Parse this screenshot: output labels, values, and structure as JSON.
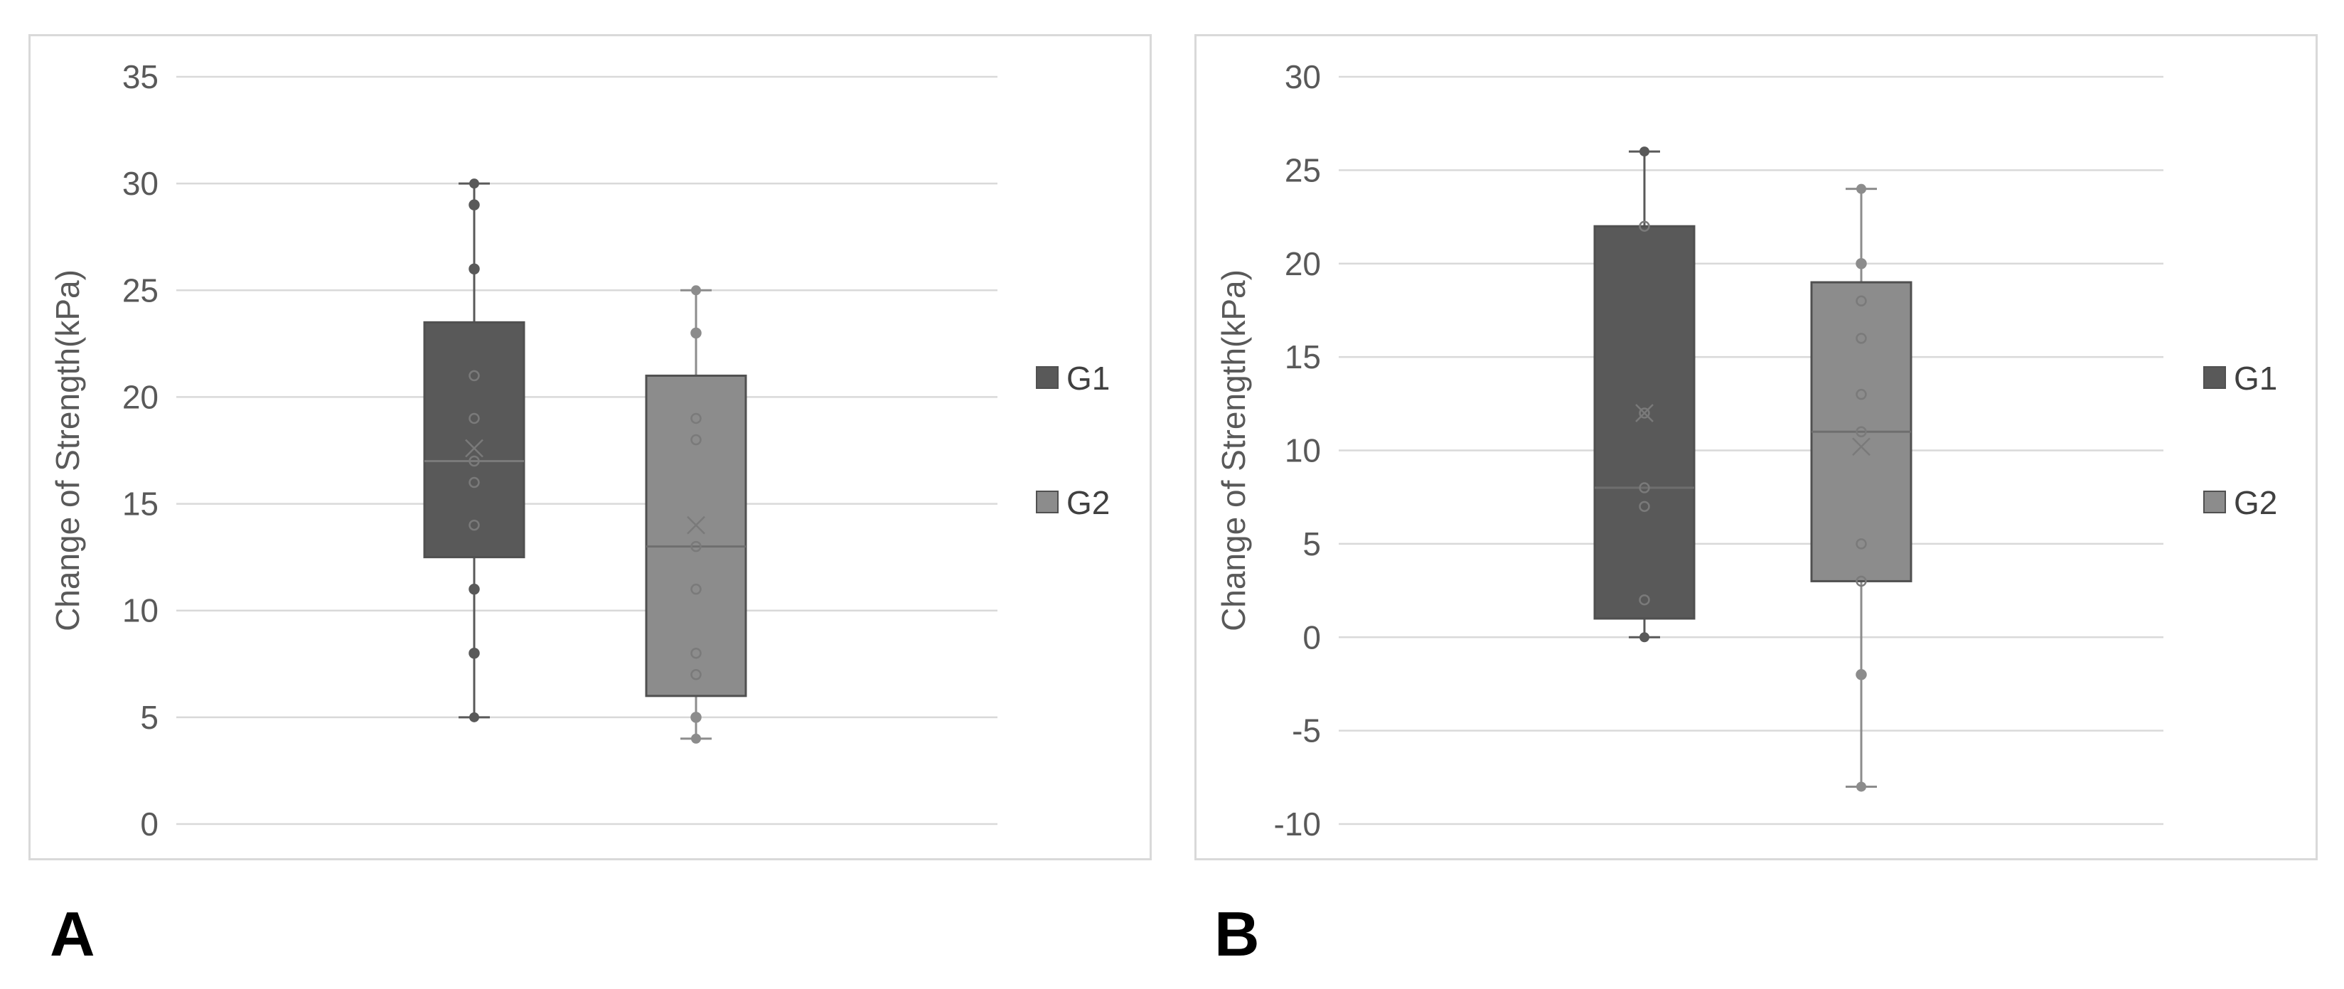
{
  "chart_data": [
    {
      "type": "box",
      "panel_label": "A",
      "ylabel": "Change of Strength(kPa)",
      "ylim": [
        0,
        35
      ],
      "yticks": [
        "0",
        "5",
        "10",
        "15",
        "20",
        "25",
        "30",
        "35"
      ],
      "ytick_values": [
        0,
        5,
        10,
        15,
        20,
        25,
        30,
        35
      ],
      "grid": true,
      "legend": [
        "G1",
        "G2"
      ],
      "legend_position": "right",
      "series": [
        {
          "name": "G1",
          "color": "#595959",
          "q1": 12.5,
          "median": 17,
          "q3": 23.5,
          "mean": 17.6,
          "whisker_low": 5,
          "whisker_high": 30,
          "points": [
            29,
            26,
            21,
            19,
            17,
            16,
            14,
            11,
            8
          ]
        },
        {
          "name": "G2",
          "color": "#8c8c8c",
          "q1": 6,
          "median": 13,
          "q3": 21,
          "mean": 14,
          "whisker_low": 4,
          "whisker_high": 25,
          "points": [
            23,
            19,
            18,
            13,
            11,
            8,
            7,
            5
          ]
        }
      ]
    },
    {
      "type": "box",
      "panel_label": "B",
      "ylabel": "Change of Strength(kPa)",
      "ylim": [
        -10,
        30
      ],
      "yticks": [
        "-10",
        "-5",
        "0",
        "5",
        "10",
        "15",
        "20",
        "25",
        "30"
      ],
      "ytick_values": [
        -10,
        -5,
        0,
        5,
        10,
        15,
        20,
        25,
        30
      ],
      "grid": true,
      "legend": [
        "G1",
        "G2"
      ],
      "legend_position": "right",
      "series": [
        {
          "name": "G1",
          "color": "#595959",
          "q1": 1,
          "median": 8,
          "q3": 22,
          "mean": 12,
          "whisker_low": 0,
          "whisker_high": 26,
          "points": [
            22,
            12,
            8,
            7,
            2
          ]
        },
        {
          "name": "G2",
          "color": "#8c8c8c",
          "q1": 3,
          "median": 11,
          "q3": 19,
          "mean": 10.2,
          "whisker_low": -8,
          "whisker_high": 24,
          "points": [
            20,
            18,
            16,
            13,
            11,
            5,
            3,
            -2
          ]
        }
      ]
    }
  ]
}
